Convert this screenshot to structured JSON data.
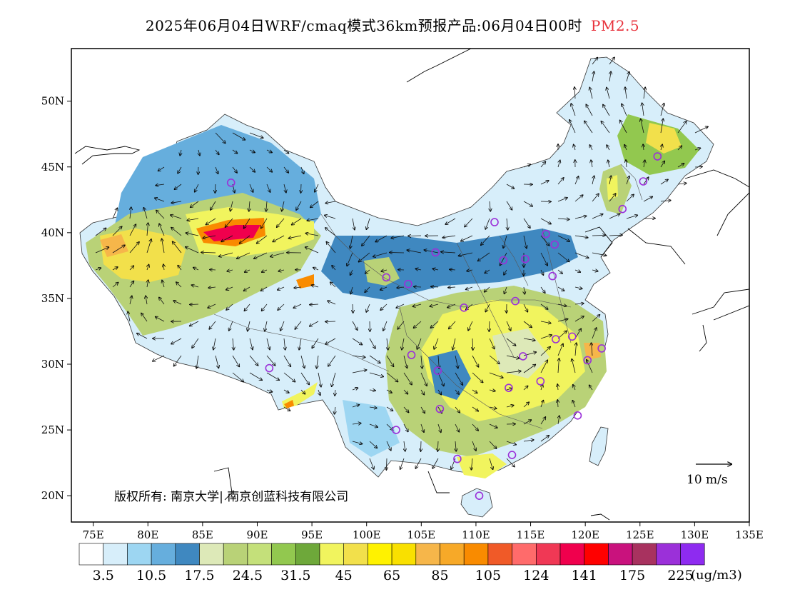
{
  "title": {
    "main": "2025年06月04日WRF/cmaq模式36km预报产品:06月04日00时",
    "species": "PM2.5",
    "species_color": "#e8323c"
  },
  "map": {
    "lon_labels": [
      "75E",
      "80E",
      "85E",
      "90E",
      "95E",
      "100E",
      "105E",
      "110E",
      "115E",
      "120E",
      "125E",
      "130E",
      "135E"
    ],
    "lat_labels": [
      "20N",
      "25N",
      "30N",
      "35N",
      "40N",
      "45N",
      "50N"
    ],
    "lon_range": [
      73,
      135
    ],
    "lat_range": [
      18,
      54
    ],
    "copyright": "版权所有: 南京大学| 南京创蓝科技有限公司",
    "wind_reference": "10 m/s",
    "city_marker_color": "#9b30d9",
    "cities": [
      [
        87.6,
        43.8
      ],
      [
        91.1,
        29.7
      ],
      [
        101.8,
        36.6
      ],
      [
        103.8,
        36.1
      ],
      [
        106.3,
        38.5
      ],
      [
        111.7,
        40.8
      ],
      [
        112.5,
        37.9
      ],
      [
        114.5,
        38.0
      ],
      [
        116.4,
        39.9
      ],
      [
        117.2,
        39.1
      ],
      [
        117.0,
        36.7
      ],
      [
        113.6,
        34.8
      ],
      [
        108.9,
        34.3
      ],
      [
        104.1,
        30.7
      ],
      [
        106.5,
        29.5
      ],
      [
        114.3,
        30.6
      ],
      [
        117.3,
        31.9
      ],
      [
        118.8,
        32.1
      ],
      [
        121.5,
        31.2
      ],
      [
        120.2,
        30.3
      ],
      [
        115.9,
        28.7
      ],
      [
        113.0,
        28.2
      ],
      [
        106.7,
        26.6
      ],
      [
        102.7,
        25.0
      ],
      [
        108.3,
        22.8
      ],
      [
        113.3,
        23.1
      ],
      [
        119.3,
        26.1
      ],
      [
        110.3,
        20.0
      ],
      [
        123.4,
        41.8
      ],
      [
        125.3,
        43.9
      ],
      [
        126.6,
        45.8
      ]
    ]
  },
  "colorbar": {
    "colors": [
      "#ffffff",
      "#d7eefa",
      "#9dd6f2",
      "#66aedd",
      "#3f88c0",
      "#dde9b8",
      "#b9d277",
      "#c4e07a",
      "#92c84f",
      "#6ea83a",
      "#f1f45e",
      "#f2e04b",
      "#fff200",
      "#f9e000",
      "#f6b64a",
      "#f7a928",
      "#f98b00",
      "#f05a28",
      "#ff6b6b",
      "#f03855",
      "#f0004d",
      "#ff0000",
      "#c9127d",
      "#a8325f",
      "#9b30d9",
      "#8e2bf0"
    ],
    "tick_labels": [
      "3.5",
      "10.5",
      "17.5",
      "24.5",
      "31.5",
      "45",
      "65",
      "85",
      "105",
      "124",
      "141",
      "175",
      "225"
    ],
    "unit": "(ug/m3)"
  }
}
